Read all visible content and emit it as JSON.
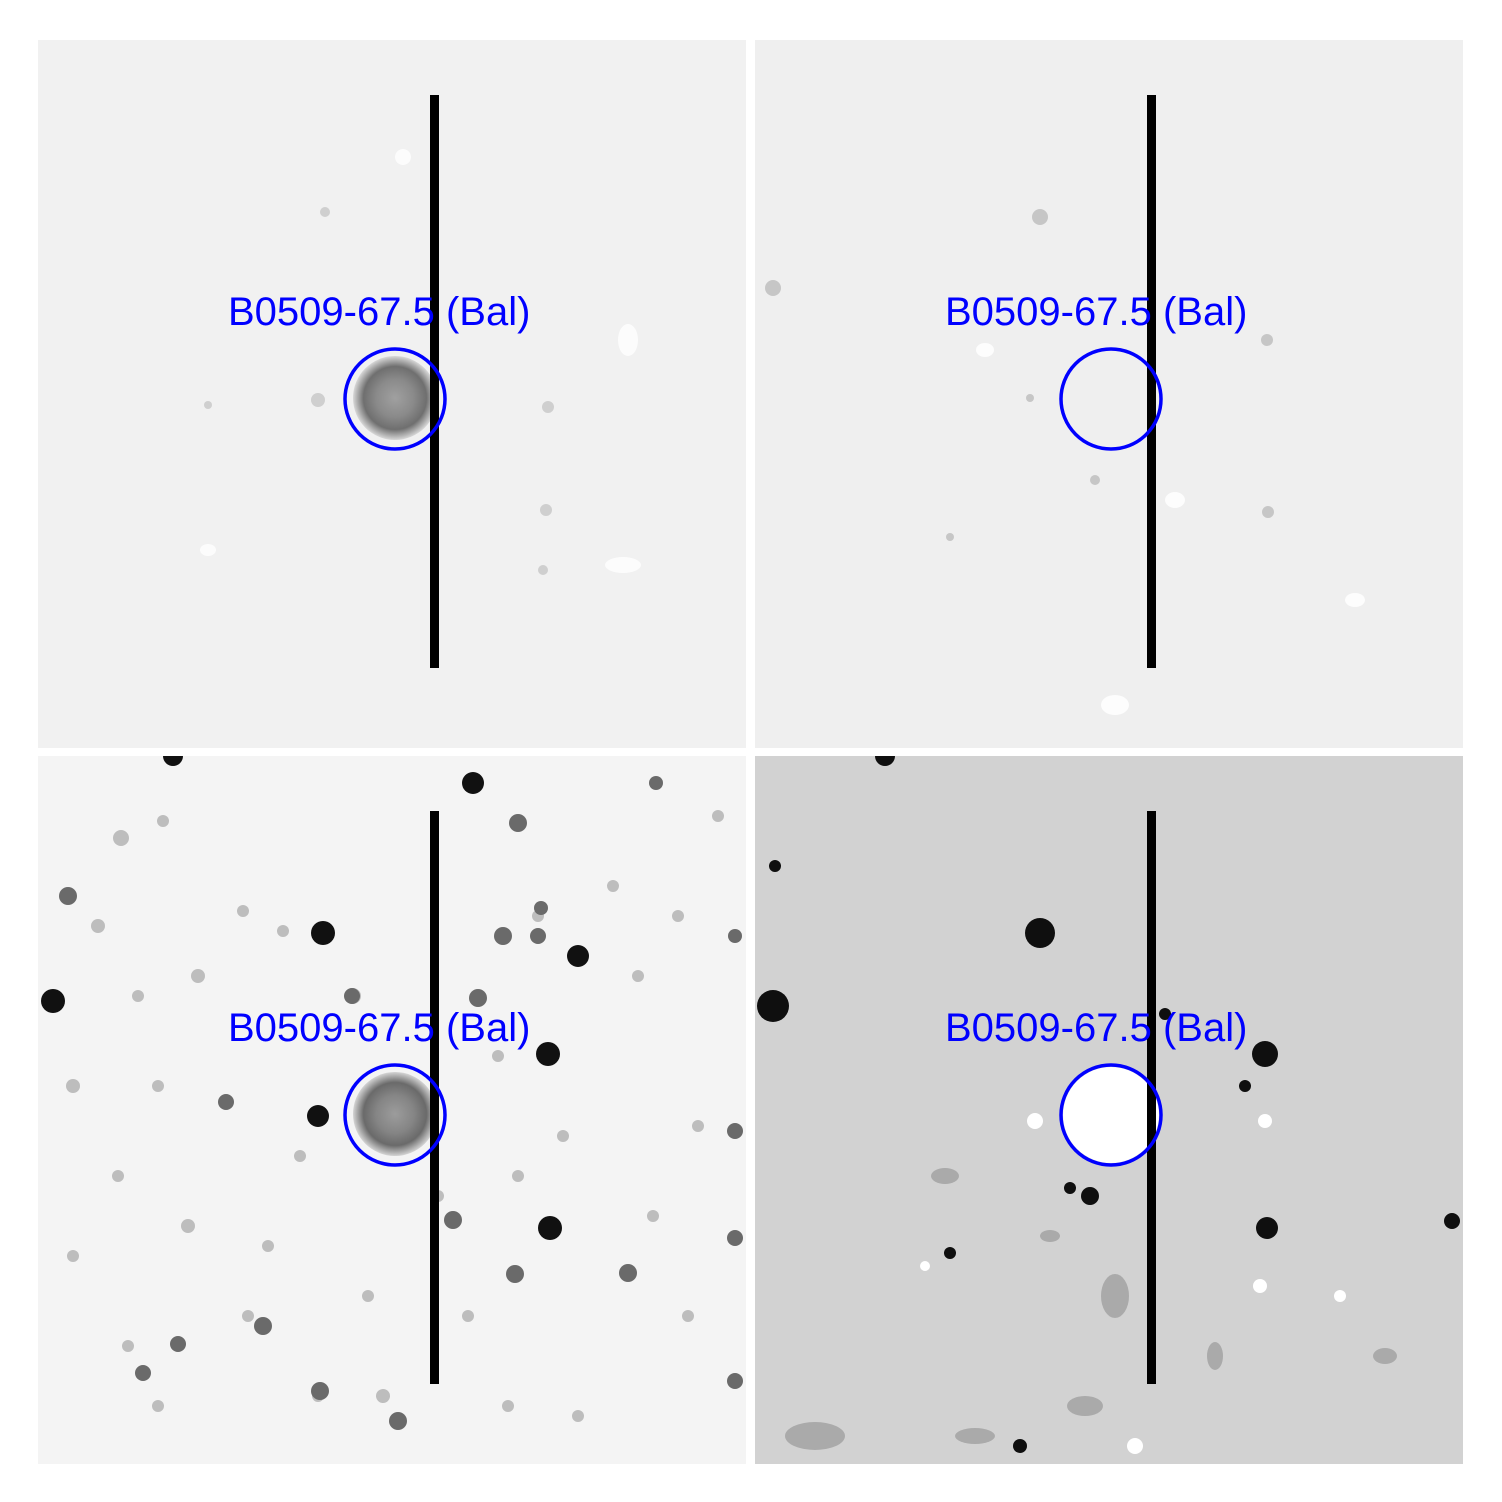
{
  "colors": {
    "marker": "#0000ff",
    "slit": "#000000",
    "background_light": "#f2f2f2",
    "background_difference": "#d2d2d2"
  },
  "panels": [
    {
      "label": "B0509-67.5 (Bal)"
    },
    {
      "label": "B0509-67.5 (Bal)"
    },
    {
      "label": "B0509-67.5 (Bal)"
    },
    {
      "label": "B0509-67.5 (Bal)"
    }
  ]
}
